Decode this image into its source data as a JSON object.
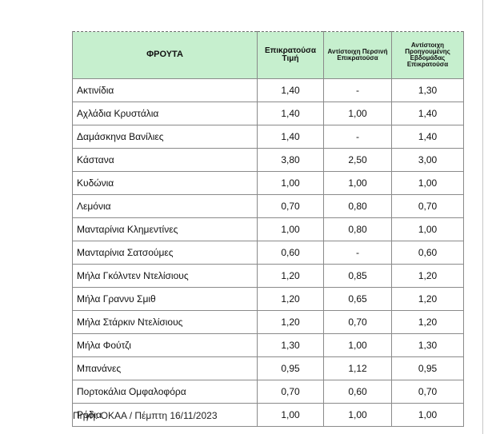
{
  "table": {
    "headers": {
      "fruit": "ΦΡΟΥΤΑ",
      "current_price": "Επικρατούσα Τιμή",
      "last_year": "Αντίστοιχη Περσινή Επικρατούσα",
      "prev_week": "Αντίστοιχη Προηγουμένης Εβδομάδας Επικρατούσα"
    },
    "rows": [
      [
        "Ακτινίδια",
        "1,40",
        "-",
        "1,30"
      ],
      [
        "Αχλάδια Κρυστάλια",
        "1,40",
        "1,00",
        "1,40"
      ],
      [
        "Δαμάσκηνα Βανίλιες",
        "1,40",
        "-",
        "1,40"
      ],
      [
        "Κάστανα",
        "3,80",
        "2,50",
        "3,00"
      ],
      [
        "Κυδώνια",
        "1,00",
        "1,00",
        "1,00"
      ],
      [
        "Λεμόνια",
        "0,70",
        "0,80",
        "0,70"
      ],
      [
        "Μανταρίνια Κλημεντίνες",
        "1,00",
        "0,80",
        "1,00"
      ],
      [
        "Μανταρίνια Σατσούμες",
        "0,60",
        "-",
        "0,60"
      ],
      [
        "Μήλα Γκόλντεν Ντελίσιους",
        "1,20",
        "0,85",
        "1,20"
      ],
      [
        "Μήλα Γραννυ Σμιθ",
        "1,20",
        "0,65",
        "1,20"
      ],
      [
        "Μήλα Στάρκιν Ντελίσιους",
        "1,20",
        "0,70",
        "1,20"
      ],
      [
        "Μήλα Φούτζι",
        "1,30",
        "1,00",
        "1,30"
      ],
      [
        "Μπανάνες",
        "0,95",
        "1,12",
        "0,95"
      ],
      [
        "Πορτοκάλια Ομφαλοφόρα",
        "0,70",
        "0,60",
        "0,70"
      ],
      [
        "Ρόδια",
        "1,00",
        "1,00",
        "1,00"
      ]
    ]
  },
  "source": "Πηγή: ΟΚΑΑ / Πέμπτη 16/11/2023",
  "colors": {
    "header_bg": "#c6efce",
    "border": "#8a8a8a"
  }
}
